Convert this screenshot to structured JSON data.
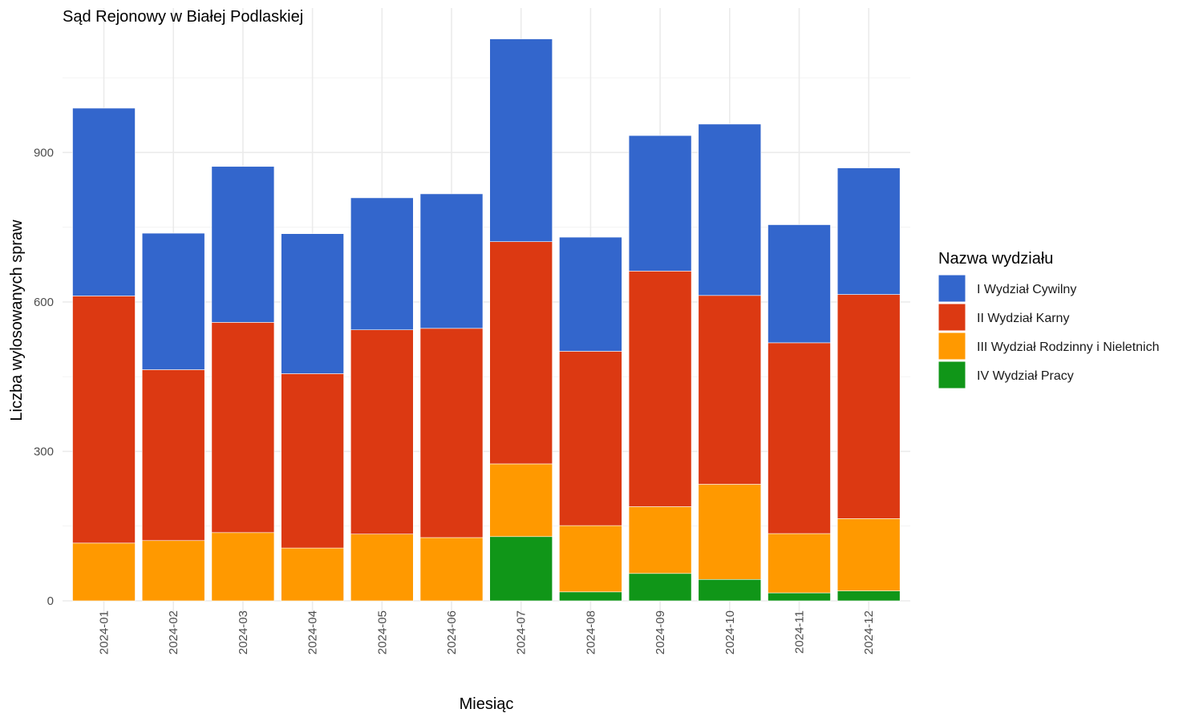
{
  "chart_data": {
    "type": "bar",
    "stacked": true,
    "title": "Sąd Rejonowy w Białej Podlaskiej",
    "xlabel": "Miesiąc",
    "ylabel": "Liczba wylosowanych spraw",
    "ylim": [
      0,
      1190
    ],
    "yticks": [
      0,
      300,
      600,
      900
    ],
    "grid": true,
    "legend": {
      "title": "Nazwa wydziału",
      "position": "right"
    },
    "categories": [
      "2024-01",
      "2024-02",
      "2024-03",
      "2024-04",
      "2024-05",
      "2024-06",
      "2024-07",
      "2024-08",
      "2024-09",
      "2024-10",
      "2024-11",
      "2024-12"
    ],
    "series": [
      {
        "name": "IV Wydział Pracy",
        "color": "#109618",
        "values": [
          0,
          0,
          0,
          0,
          0,
          0,
          129,
          18,
          55,
          43,
          16,
          20
        ]
      },
      {
        "name": "III Wydział Rodzinny i Nieletnich",
        "color": "#ff9900",
        "values": [
          116,
          121,
          137,
          106,
          134,
          127,
          146,
          133,
          134,
          191,
          119,
          145
        ]
      },
      {
        "name": "II Wydział Karny",
        "color": "#dc3912",
        "values": [
          496,
          343,
          422,
          350,
          410,
          420,
          446,
          350,
          473,
          379,
          383,
          450
        ]
      },
      {
        "name": "I Wydział Cywilny",
        "color": "#3366cc",
        "values": [
          377,
          274,
          313,
          281,
          265,
          270,
          407,
          229,
          272,
          344,
          237,
          254
        ]
      }
    ],
    "legend_order": [
      "I Wydział Cywilny",
      "II Wydział Karny",
      "III Wydział Rodzinny i Nieletnich",
      "IV Wydział Pracy"
    ]
  }
}
